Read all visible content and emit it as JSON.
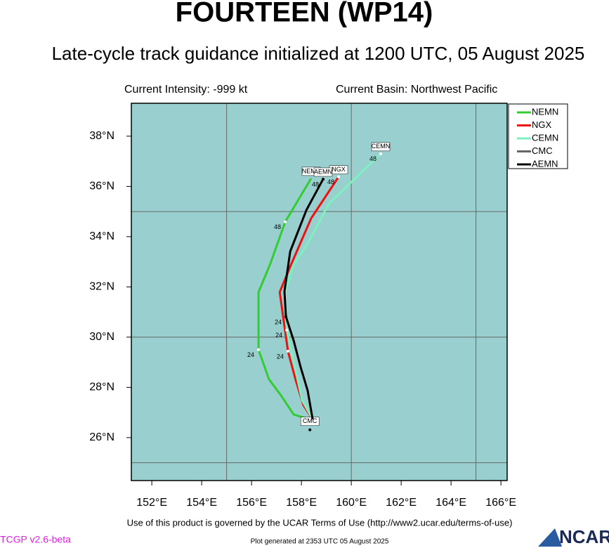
{
  "chart_data": {
    "type": "track",
    "title": "FOURTEEN (WP14)",
    "subtitle": "Late-cycle track guidance initialized at 1200 UTC, 05 August 2025",
    "intensity": "Current Intensity: -999 kt",
    "basin": "Current Basin: Northwest Pacific",
    "xlim": [
      151.18,
      166.25
    ],
    "ylim": [
      24.29,
      39.31
    ],
    "xticks": [
      {
        "value": 152,
        "label": "152°E"
      },
      {
        "value": 154,
        "label": "154°E"
      },
      {
        "value": 156,
        "label": "156°E"
      },
      {
        "value": 158,
        "label": "158°E"
      },
      {
        "value": 160,
        "label": "160°E"
      },
      {
        "value": 162,
        "label": "162°E"
      },
      {
        "value": 164,
        "label": "164°E"
      },
      {
        "value": 166,
        "label": "166°E"
      }
    ],
    "yticks": [
      {
        "value": 26,
        "label": "26°N"
      },
      {
        "value": 28,
        "label": "28°N"
      },
      {
        "value": 30,
        "label": "30°N"
      },
      {
        "value": 32,
        "label": "32°N"
      },
      {
        "value": 34,
        "label": "34°N"
      },
      {
        "value": 36,
        "label": "36°N"
      },
      {
        "value": 38,
        "label": "38°N"
      }
    ],
    "xgrid": [
      155,
      160,
      165
    ],
    "ygrid": [
      25,
      30,
      35
    ],
    "background": "#9acfcf",
    "series": [
      {
        "name": "NEMN",
        "color": "#33cc33",
        "x": [
          158.39,
          157.69,
          157.18,
          156.7,
          156.28,
          156.28,
          156.76,
          157.35,
          158.39
        ],
        "y": [
          26.7,
          26.92,
          27.68,
          28.32,
          29.5,
          31.79,
          32.94,
          34.59,
          36.32
        ],
        "point_labels": [
          null,
          null,
          null,
          null,
          "24",
          null,
          null,
          "48",
          null
        ]
      },
      {
        "name": "NGX",
        "color": "#ee1111",
        "x": [
          158.45,
          158.08,
          157.77,
          157.46,
          157.13,
          157.58,
          158.39,
          159.49
        ],
        "y": [
          26.73,
          27.29,
          28.29,
          29.44,
          31.79,
          32.88,
          34.73,
          36.38
        ],
        "point_labels": [
          null,
          null,
          null,
          "24",
          null,
          null,
          null,
          "48"
        ]
      },
      {
        "name": "CEMN",
        "color": "#7fefc0",
        "x": [
          158.45,
          158.03,
          157.41,
          157.35,
          157.69,
          158.25,
          159.1,
          161.18
        ],
        "y": [
          26.73,
          27.48,
          30.28,
          31.82,
          32.88,
          33.72,
          35.31,
          37.3
        ],
        "point_labels": [
          null,
          null,
          "24",
          null,
          null,
          null,
          null,
          "48"
        ]
      },
      {
        "name": "CMC",
        "color": "#666666",
        "x": [
          158.34
        ],
        "y": [
          26.31
        ],
        "point_labels": [
          null
        ]
      },
      {
        "name": "AEMN",
        "color": "#000000",
        "x": [
          158.45,
          158.25,
          157.97,
          157.69,
          157.38,
          157.32,
          157.55,
          158.2,
          158.87
        ],
        "y": [
          26.73,
          27.87,
          28.8,
          29.86,
          30.81,
          31.82,
          33.41,
          35.06,
          36.29
        ],
        "point_labels": [
          null,
          null,
          null,
          null,
          "24",
          null,
          null,
          null,
          "48"
        ]
      }
    ],
    "terms": "Use of this product is governed by the UCAR Terms of Use (http://www2.ucar.edu/terms-of-use)",
    "version": "TCGP v2.6-beta",
    "generated": "Plot generated at 2353 UTC   05 August 2025",
    "logo": "NCAR"
  }
}
